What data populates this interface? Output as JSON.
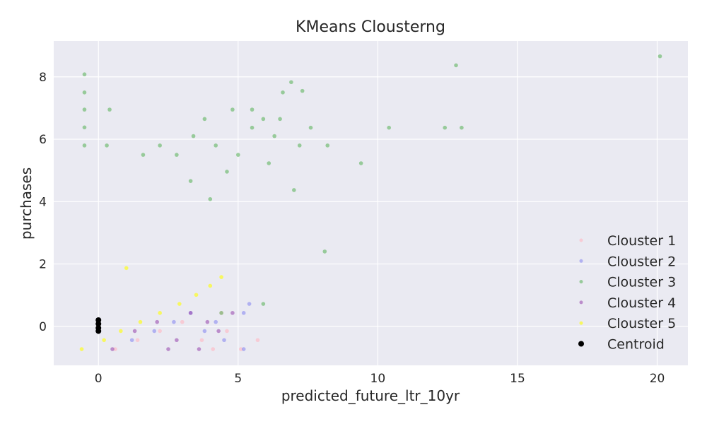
{
  "chart_data": {
    "type": "scatter",
    "title": "KMeans Clousterng",
    "xlabel": "predicted_future_ltr_10yr",
    "ylabel": "purchases",
    "xlim": [
      -1.6,
      21.1
    ],
    "ylim": [
      -1.25,
      9.15
    ],
    "xticks": [
      0,
      5,
      10,
      15,
      20
    ],
    "yticks": [
      0,
      2,
      4,
      6,
      8
    ],
    "grid": true,
    "legend_position": "lower-right",
    "colors": {
      "background": "#eaeaf2",
      "grid": "#ffffff",
      "Clouster 1": "#ffb6c1",
      "Clouster 2": "#8a8af0",
      "Clouster 3": "#5fb45f",
      "Clouster 4": "#9b4fb0",
      "Clouster 5": "#ffff00",
      "Centroid": "#000000"
    },
    "series": [
      {
        "name": "Clouster 1",
        "color": "#ffb6c1",
        "x": [
          0.6,
          1.4,
          2.2,
          3.0,
          3.7,
          4.1,
          4.4,
          4.6,
          5.1,
          5.7
        ],
        "y": [
          -0.73,
          -0.44,
          -0.15,
          0.14,
          -0.44,
          -0.73,
          0.43,
          -0.15,
          -0.73,
          -0.44
        ]
      },
      {
        "name": "Clouster 2",
        "color": "#8a8af0",
        "x": [
          1.2,
          2.0,
          2.7,
          3.3,
          3.8,
          4.2,
          4.5,
          5.2,
          5.4,
          5.2
        ],
        "y": [
          -0.44,
          -0.15,
          0.14,
          0.43,
          -0.15,
          0.14,
          -0.44,
          0.43,
          0.72,
          -0.73
        ]
      },
      {
        "name": "Clouster 3",
        "color": "#5fb45f",
        "x": [
          -0.5,
          -0.5,
          -0.5,
          -0.5,
          -0.5,
          0.4,
          0.3,
          1.6,
          2.2,
          2.8,
          3.4,
          3.8,
          4.2,
          4.8,
          5.0,
          5.5,
          5.9,
          6.3,
          6.6,
          6.9,
          7.3,
          7.6,
          8.2,
          9.4,
          10.4,
          12.4,
          12.8,
          13.0,
          20.1,
          5.5,
          6.5,
          3.3,
          4.6,
          4.0,
          7.2,
          6.1,
          7.0,
          8.1,
          5.9,
          4.4
        ],
        "y": [
          8.08,
          7.5,
          6.95,
          6.38,
          5.8,
          6.95,
          5.8,
          5.5,
          5.8,
          5.5,
          6.1,
          6.65,
          5.8,
          6.95,
          5.5,
          6.95,
          6.65,
          6.1,
          7.5,
          7.83,
          7.55,
          6.37,
          5.8,
          5.23,
          6.37,
          6.37,
          8.37,
          6.37,
          8.66,
          6.37,
          6.65,
          4.66,
          4.96,
          4.08,
          5.8,
          5.23,
          4.37,
          2.4,
          0.72,
          0.43
        ]
      },
      {
        "name": "Clouster 4",
        "color": "#9b4fb0",
        "x": [
          0.5,
          1.3,
          2.1,
          2.8,
          3.3,
          3.6,
          3.9,
          4.3,
          4.8,
          2.5
        ],
        "y": [
          -0.73,
          -0.15,
          0.14,
          -0.44,
          0.43,
          -0.73,
          0.14,
          -0.15,
          0.43,
          -0.73
        ]
      },
      {
        "name": "Clouster 5",
        "color": "#ffff00",
        "x": [
          -0.6,
          0.2,
          0.8,
          1.5,
          2.2,
          2.9,
          3.5,
          4.0,
          4.4,
          1.0
        ],
        "y": [
          -0.73,
          -0.44,
          -0.15,
          0.14,
          0.43,
          0.72,
          1.01,
          1.3,
          1.58,
          1.87
        ]
      },
      {
        "name": "Centroid",
        "color": "#000000",
        "x": [
          0.0,
          0.0,
          0.0,
          0.0
        ],
        "y": [
          0.2,
          0.08,
          -0.05,
          -0.15
        ]
      }
    ]
  }
}
